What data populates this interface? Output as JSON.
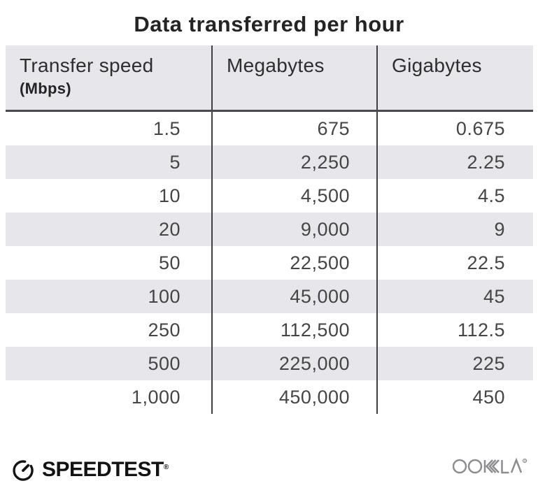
{
  "title": "Data transferred per hour",
  "table": {
    "columns": [
      {
        "label": "Transfer speed",
        "sublabel": "(Mbps)"
      },
      {
        "label": "Megabytes"
      },
      {
        "label": "Gigabytes"
      }
    ],
    "rows": [
      [
        "1.5",
        "675",
        "0.675"
      ],
      [
        "5",
        "2,250",
        "2.25"
      ],
      [
        "10",
        "4,500",
        "4.5"
      ],
      [
        "20",
        "9,000",
        "9"
      ],
      [
        "50",
        "22,500",
        "22.5"
      ],
      [
        "100",
        "45,000",
        "45"
      ],
      [
        "250",
        "112,500",
        "112.5"
      ],
      [
        "500",
        "225,000",
        "225"
      ],
      [
        "1,000",
        "450,000",
        "450"
      ]
    ]
  },
  "footer": {
    "brand": "SPEEDTEST",
    "brand_mark": "®",
    "company": "OOKLA"
  },
  "colors": {
    "stripe_bg": "#e7e7eb",
    "header_bg": "#e7e7eb",
    "divider": "#3f3f3f",
    "header_underline": "#4a4a4a",
    "title_text": "#242424",
    "cell_text": "#454545",
    "brand_black": "#131313",
    "ookla_gray": "#8d8d91"
  },
  "chart_data": {
    "type": "table",
    "title": "Data transferred per hour",
    "columns": [
      "Transfer speed (Mbps)",
      "Megabytes",
      "Gigabytes"
    ],
    "rows": [
      [
        1.5,
        675,
        0.675
      ],
      [
        5,
        2250,
        2.25
      ],
      [
        10,
        4500,
        4.5
      ],
      [
        20,
        9000,
        9
      ],
      [
        50,
        22500,
        22.5
      ],
      [
        100,
        45000,
        45
      ],
      [
        250,
        112500,
        112.5
      ],
      [
        500,
        225000,
        225
      ],
      [
        1000,
        450000,
        450
      ]
    ]
  }
}
